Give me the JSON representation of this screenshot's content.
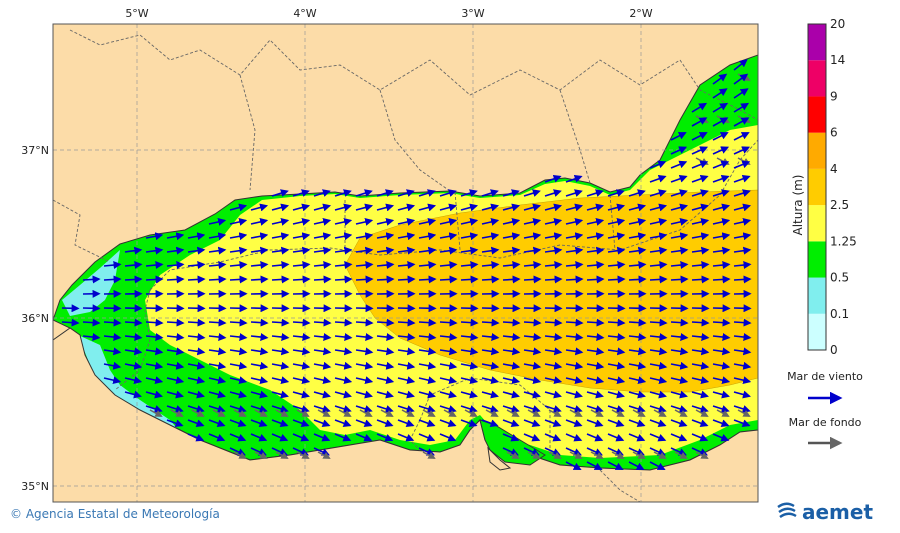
{
  "map": {
    "lon_ticks": [
      "5°W",
      "4°W",
      "3°W",
      "2°W"
    ],
    "lat_ticks": [
      "37°N",
      "36°N",
      "35°N"
    ]
  },
  "colorbar": {
    "title": "Altura (m)",
    "levels": [
      "0",
      "0.1",
      "0.5",
      "1.25",
      "2.5",
      "4",
      "6",
      "9",
      "14",
      "20"
    ],
    "colors": [
      "#ccffff",
      "#80eeee",
      "#00ee00",
      "#ffff44",
      "#ffcc00",
      "#ffaa00",
      "#ff0000",
      "#ee0066",
      "#aa00aa"
    ]
  },
  "legend": {
    "wind_sea_label": "Mar de viento",
    "swell_label": "Mar de fondo",
    "wind_sea_color": "#0000cc",
    "swell_color": "#555555"
  },
  "footer": {
    "credit": "© Agencia Estatal de Meteorología",
    "logo_text": "aemet"
  },
  "colors": {
    "land": "#fcdca8",
    "calm": "#80eeee",
    "low": "#00ee00",
    "moderate": "#ffff44",
    "high": "#ffcc00"
  }
}
